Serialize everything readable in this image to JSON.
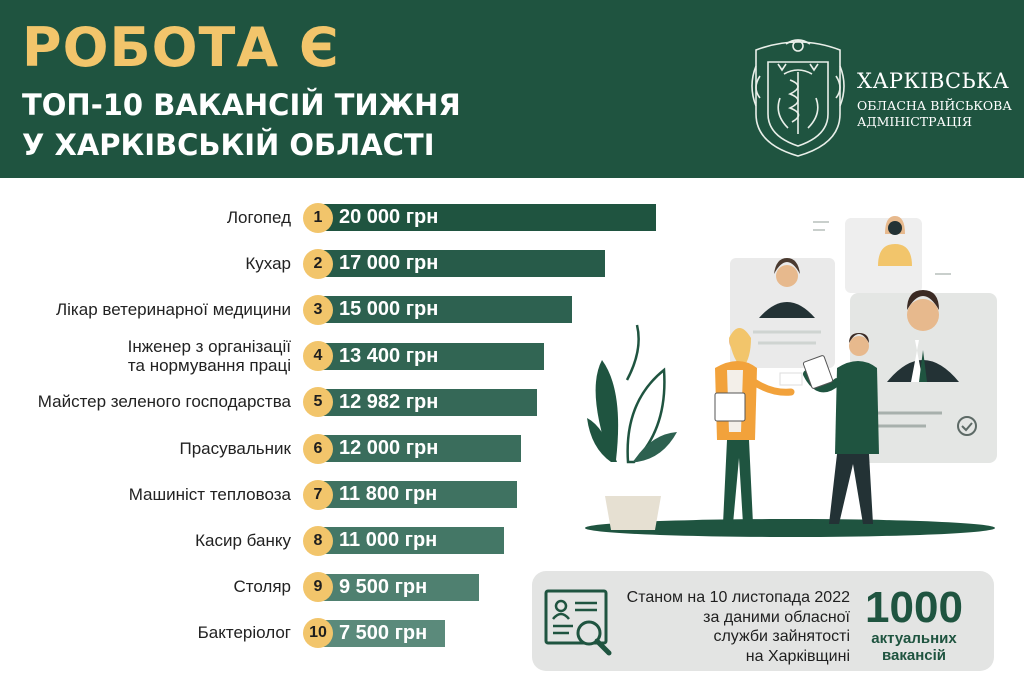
{
  "header": {
    "title": "РОБОТА Є",
    "subtitle_line1": "ТОП-10 ВАКАНСІЙ ТИЖНЯ",
    "subtitle_line2": "У ХАРКІВСЬКІЙ ОБЛАСТІ",
    "org_line1": "ХАРКІВСЬКА",
    "org_line2": "ОБЛАСНА ВІЙСЬКОВА",
    "org_line3": "АДМІНІСТРАЦІЯ",
    "logo_icon": "kharkiv-coat-of-arms-icon"
  },
  "colors": {
    "header_bg": "#1f5440",
    "title_accent": "#f2c56b",
    "badge": "#f2c56b",
    "bar_gradient": [
      "#1f5440",
      "#275b49",
      "#2d6150",
      "#316553",
      "#356857",
      "#3a6d5c",
      "#3f7261",
      "#447766",
      "#4f8070",
      "#5b8a7b"
    ],
    "info_bg": "#e3e4e3"
  },
  "chart_data": {
    "type": "bar",
    "orientation": "horizontal",
    "unit": "грн",
    "categories": [
      "Логопед",
      "Кухар",
      "Лікар ветеринарної медицини",
      "Інженер з організації та нормування праці",
      "Майстер зеленого господарства",
      "Прасувальник",
      "Машиніст тепловоза",
      "Касир банку",
      "Столяр",
      "Бактеріолог"
    ],
    "category_lines": [
      [
        "Логопед"
      ],
      [
        "Кухар"
      ],
      [
        "Лікар ветеринарної медицини"
      ],
      [
        "Інженер з організації",
        "та нормування праці"
      ],
      [
        "Майстер зеленого господарства"
      ],
      [
        "Прасувальник"
      ],
      [
        "Машиніст тепловоза"
      ],
      [
        "Касир банку"
      ],
      [
        "Столяр"
      ],
      [
        "Бактеріолог"
      ]
    ],
    "ranks": [
      "1",
      "2",
      "3",
      "4",
      "5",
      "6",
      "7",
      "8",
      "9",
      "10"
    ],
    "values": [
      20000,
      17000,
      15000,
      13400,
      12982,
      12000,
      11800,
      11000,
      9500,
      7500
    ],
    "value_labels": [
      "20 000 грн",
      "17 000 грн",
      "15 000 грн",
      "13 400 грн",
      "12 982 грн",
      "12 000 грн",
      "11 800 грн",
      "11 000 грн",
      "9 500 грн",
      "7 500 грн"
    ]
  },
  "info": {
    "line1": "Станом на 10 листопада 2022",
    "line2": "за даними обласної",
    "line3": "служби зайнятості",
    "line4": "на Харківщині",
    "count": "1000",
    "count_caption1": "актуальних",
    "count_caption2": "вакансій",
    "icon": "document-search-icon"
  },
  "illustration": {
    "icon": "job-interview-illustration"
  }
}
